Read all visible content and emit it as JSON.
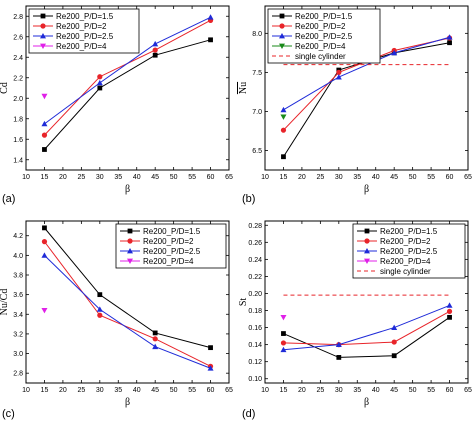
{
  "chart_data": [
    {
      "id": "a",
      "panel_label": "(a)",
      "type": "line",
      "xlabel": "β",
      "ylabel": "Cd",
      "ylabel_overline": true,
      "xlim": [
        10,
        65
      ],
      "ylim": [
        1.3,
        2.9
      ],
      "xticks": [
        10,
        15,
        20,
        25,
        30,
        35,
        40,
        45,
        50,
        55,
        60,
        65
      ],
      "yticks": [
        1.4,
        1.6,
        1.8,
        2.0,
        2.2,
        2.4,
        2.6,
        2.8
      ],
      "y_decimals": 1,
      "legend_position": "top-left",
      "series": [
        {
          "name": "Re200_P/D=1.5",
          "color": "#000000",
          "marker": "square",
          "x": [
            15,
            30,
            45,
            60
          ],
          "values": [
            1.5,
            2.1,
            2.42,
            2.57
          ]
        },
        {
          "name": "Re200_P/D=2",
          "color": "#e8242a",
          "marker": "circle",
          "x": [
            15,
            30,
            45,
            60
          ],
          "values": [
            1.64,
            2.21,
            2.47,
            2.76
          ]
        },
        {
          "name": "Re200_P/D=2.5",
          "color": "#1f2bd8",
          "marker": "triangle-up",
          "x": [
            15,
            30,
            45,
            60
          ],
          "values": [
            1.75,
            2.15,
            2.53,
            2.79
          ]
        },
        {
          "name": "Re200_P/D=4",
          "color": "#e020e8",
          "marker": "triangle-down",
          "x": [
            15
          ],
          "values": [
            2.02
          ]
        }
      ]
    },
    {
      "id": "b",
      "panel_label": "(b)",
      "type": "line",
      "xlabel": "β",
      "ylabel": "Nu",
      "ylabel_overline": true,
      "xlim": [
        10,
        65
      ],
      "ylim": [
        6.25,
        8.35
      ],
      "xticks": [
        10,
        15,
        20,
        25,
        30,
        35,
        40,
        45,
        50,
        55,
        60,
        65
      ],
      "yticks": [
        6.5,
        7.0,
        7.5,
        8.0
      ],
      "y_decimals": 1,
      "legend_position": "top-left",
      "series": [
        {
          "name": "Re200_P/D=1.5",
          "color": "#000000",
          "marker": "square",
          "x": [
            15,
            30,
            45,
            60
          ],
          "values": [
            6.42,
            7.53,
            7.75,
            7.88
          ]
        },
        {
          "name": "Re200_P/D=2",
          "color": "#e8242a",
          "marker": "circle",
          "x": [
            15,
            30,
            45,
            60
          ],
          "values": [
            6.76,
            7.5,
            7.78,
            7.94
          ]
        },
        {
          "name": "Re200_P/D=2.5",
          "color": "#1f2bd8",
          "marker": "triangle-up",
          "x": [
            15,
            30,
            45,
            60
          ],
          "values": [
            7.02,
            7.44,
            7.75,
            7.95
          ]
        },
        {
          "name": "Re200_P/D=4",
          "color": "#1a8a1a",
          "marker": "triangle-down",
          "x": [
            15
          ],
          "values": [
            6.93
          ]
        },
        {
          "name": "single cylinder",
          "color": "#e8242a",
          "style": "dashed",
          "x": [
            15,
            60
          ],
          "values": [
            7.6,
            7.6
          ]
        }
      ]
    },
    {
      "id": "c",
      "panel_label": "(c)",
      "type": "line",
      "xlabel": "β",
      "ylabel": "Nu/Cd",
      "ylabel_overline": true,
      "xlim": [
        10,
        65
      ],
      "ylim": [
        2.7,
        4.35
      ],
      "xticks": [
        10,
        15,
        20,
        25,
        30,
        35,
        40,
        45,
        50,
        55,
        60,
        65
      ],
      "yticks": [
        2.8,
        3.0,
        3.2,
        3.4,
        3.6,
        3.8,
        4.0,
        4.2
      ],
      "y_decimals": 1,
      "legend_position": "top-right",
      "series": [
        {
          "name": "Re200_P/D=1.5",
          "color": "#000000",
          "marker": "square",
          "x": [
            15,
            30,
            45,
            60
          ],
          "values": [
            4.28,
            3.6,
            3.21,
            3.06
          ]
        },
        {
          "name": "Re200_P/D=2",
          "color": "#e8242a",
          "marker": "circle",
          "x": [
            15,
            30,
            45,
            60
          ],
          "values": [
            4.14,
            3.39,
            3.15,
            2.87
          ]
        },
        {
          "name": "Re200_P/D=2.5",
          "color": "#1f2bd8",
          "marker": "triangle-up",
          "x": [
            15,
            30,
            45,
            60
          ],
          "values": [
            4.0,
            3.45,
            3.07,
            2.85
          ]
        },
        {
          "name": "Re200_P/D=4",
          "color": "#e020e8",
          "marker": "triangle-down",
          "x": [
            15
          ],
          "values": [
            3.44
          ]
        }
      ]
    },
    {
      "id": "d",
      "panel_label": "(d)",
      "type": "line",
      "xlabel": "β",
      "ylabel": "St",
      "ylabel_overline": false,
      "xlim": [
        10,
        65
      ],
      "ylim": [
        0.095,
        0.285
      ],
      "xticks": [
        10,
        15,
        20,
        25,
        30,
        35,
        40,
        45,
        50,
        55,
        60,
        65
      ],
      "yticks": [
        0.1,
        0.12,
        0.14,
        0.16,
        0.18,
        0.2,
        0.22,
        0.24,
        0.26,
        0.28
      ],
      "y_decimals": 2,
      "legend_position": "top-right",
      "series": [
        {
          "name": "Re200_P/D=1.5",
          "color": "#000000",
          "marker": "square",
          "x": [
            15,
            30,
            45,
            60
          ],
          "values": [
            0.153,
            0.125,
            0.127,
            0.172
          ]
        },
        {
          "name": "Re200_P/D=2",
          "color": "#e8242a",
          "marker": "circle",
          "x": [
            15,
            30,
            45,
            60
          ],
          "values": [
            0.142,
            0.14,
            0.143,
            0.179
          ]
        },
        {
          "name": "Re200_P/D=2.5",
          "color": "#1f2bd8",
          "marker": "triangle-up",
          "x": [
            15,
            30,
            45,
            60
          ],
          "values": [
            0.134,
            0.14,
            0.16,
            0.186
          ]
        },
        {
          "name": "Re200_P/D=4",
          "color": "#e020e8",
          "marker": "triangle-down",
          "x": [
            15
          ],
          "values": [
            0.172
          ]
        },
        {
          "name": "single cylinder",
          "color": "#e8242a",
          "style": "dashed",
          "x": [
            15,
            60
          ],
          "values": [
            0.198,
            0.198
          ]
        }
      ]
    }
  ]
}
